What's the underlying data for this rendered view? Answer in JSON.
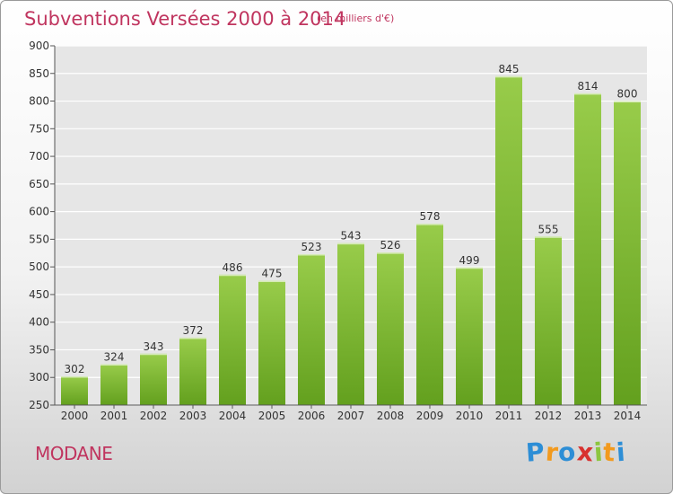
{
  "chart_data": {
    "type": "bar",
    "title": "Subventions Versées 2000 à 2014",
    "subtitle": "(en milliers d'€)",
    "categories": [
      "2000",
      "2001",
      "2002",
      "2003",
      "2004",
      "2005",
      "2006",
      "2007",
      "2008",
      "2009",
      "2010",
      "2011",
      "2012",
      "2013",
      "2014"
    ],
    "values": [
      302,
      324,
      343,
      372,
      486,
      475,
      523,
      543,
      526,
      578,
      499,
      845,
      555,
      814,
      800
    ],
    "ylim": [
      250,
      900
    ],
    "yticks": [
      250,
      300,
      350,
      400,
      450,
      500,
      550,
      600,
      650,
      700,
      750,
      800,
      850,
      900
    ],
    "grid": true,
    "bar_color": "#7fbb2e"
  },
  "footer": {
    "town": "MODANE",
    "brand_letters": [
      "P",
      "r",
      "o",
      "x",
      "i",
      "t",
      "i"
    ],
    "brand_colors": [
      "#2d8ed6",
      "#f29a1e",
      "#2d8ed6",
      "#d8312f",
      "#8cc63f",
      "#f29a1e",
      "#2d8ed6"
    ]
  }
}
